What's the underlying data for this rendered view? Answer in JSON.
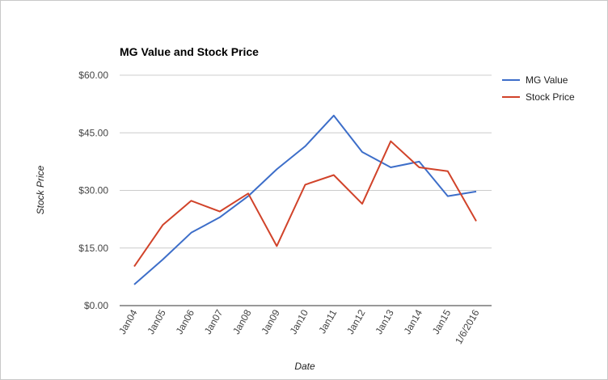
{
  "chart_data": {
    "type": "line",
    "title": "MG Value and Stock Price",
    "xlabel": "Date",
    "ylabel": "Stock Price",
    "categories": [
      "Jan04",
      "Jan05",
      "Jan06",
      "Jan07",
      "Jan08",
      "Jan09",
      "Jan10",
      "Jan11",
      "Jan12",
      "Jan13",
      "Jan14",
      "Jan15",
      "1/6/2016"
    ],
    "series": [
      {
        "name": "MG Value",
        "color": "#3d6ec9",
        "values": [
          5.5,
          12.0,
          19.0,
          23.0,
          28.5,
          35.5,
          41.5,
          49.5,
          40.0,
          36.0,
          37.5,
          28.5,
          29.7
        ]
      },
      {
        "name": "Stock Price",
        "color": "#d1432a",
        "values": [
          10.2,
          21.0,
          27.3,
          24.5,
          29.2,
          15.5,
          31.5,
          34.0,
          26.5,
          42.8,
          36.0,
          35.0,
          22.0
        ]
      }
    ],
    "ylim": [
      0,
      60
    ],
    "yticks": [
      0,
      15,
      30,
      45,
      60
    ],
    "ytick_labels": [
      "$0.00",
      "$15.00",
      "$30.00",
      "$45.00",
      "$60.00"
    ],
    "grid": true,
    "legend": "right"
  }
}
